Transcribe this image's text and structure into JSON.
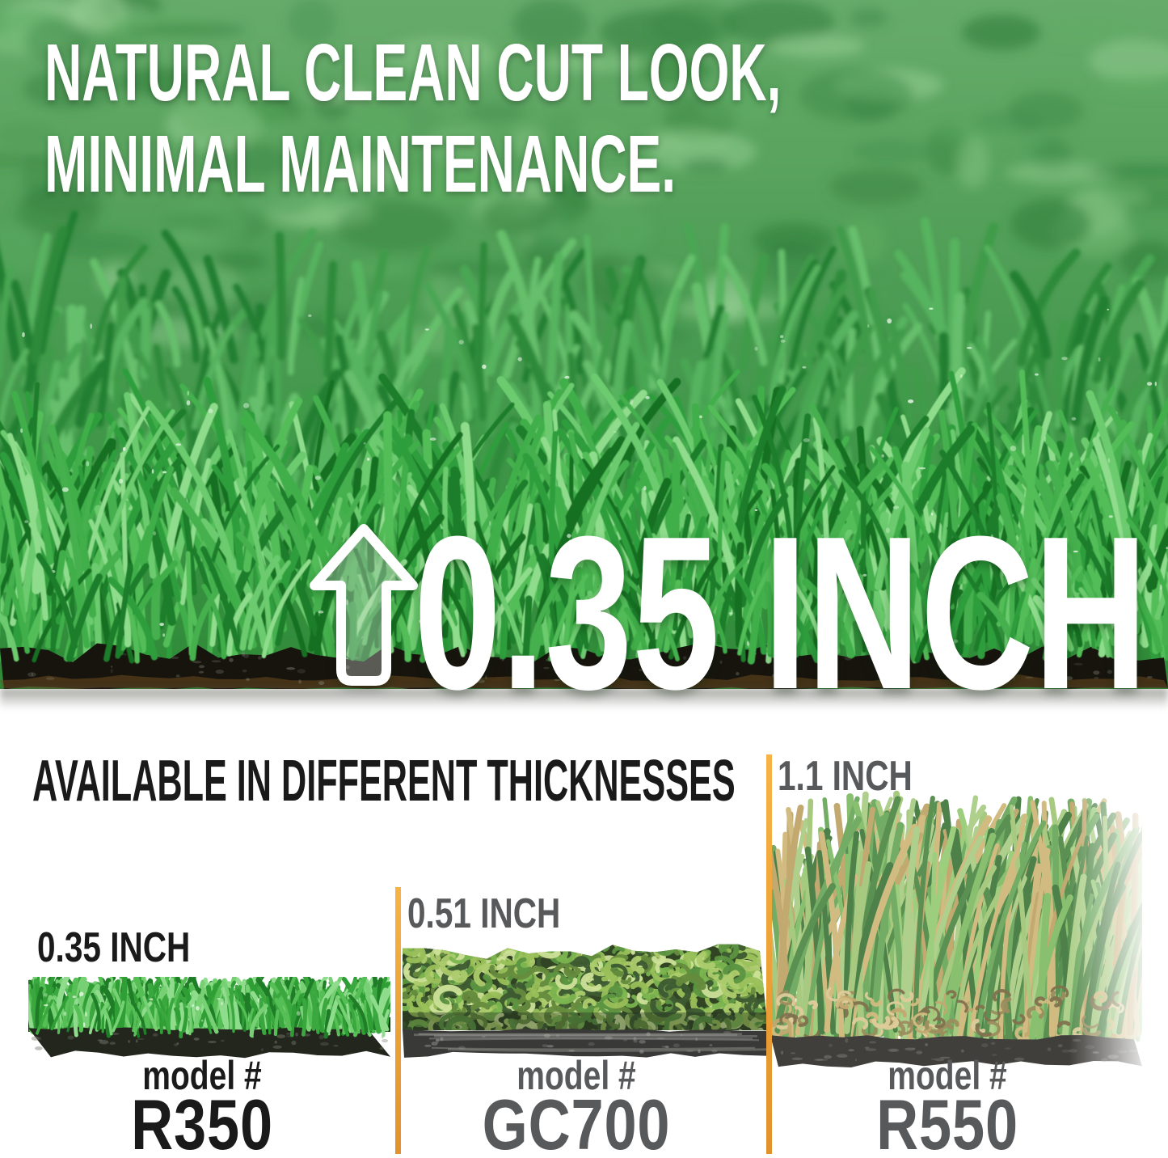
{
  "hero": {
    "headline_line1": "NATURAL CLEAN CUT LOOK,",
    "headline_line2": "MINIMAL MAINTENANCE.",
    "thickness_callout": "0.35 INCH",
    "arrow_icon": "up-arrow-icon"
  },
  "comparison": {
    "heading": "AVAILABLE IN DIFFERENT THICKNESSES",
    "products": [
      {
        "thickness": "0.35 INCH",
        "model_prefix": "model #",
        "model": "R350"
      },
      {
        "thickness": "0.51 INCH",
        "model_prefix": "model #",
        "model": "GC700"
      },
      {
        "thickness": "1.1 INCH",
        "model_prefix": "model #",
        "model": "R550"
      }
    ]
  },
  "theme": {
    "accent_orange_light": "#F7B345",
    "accent_orange_dark": "#E2922C",
    "text_black": "#1A1A1A",
    "text_gray": "#58595B",
    "text_white": "#FFFFFF",
    "grass_green_dark": "#1F7A2E",
    "grass_green": "#3FA347",
    "grass_green_light": "#8FD985",
    "turf_tan": "#C9B06A",
    "backing_dark": "#17140E"
  }
}
